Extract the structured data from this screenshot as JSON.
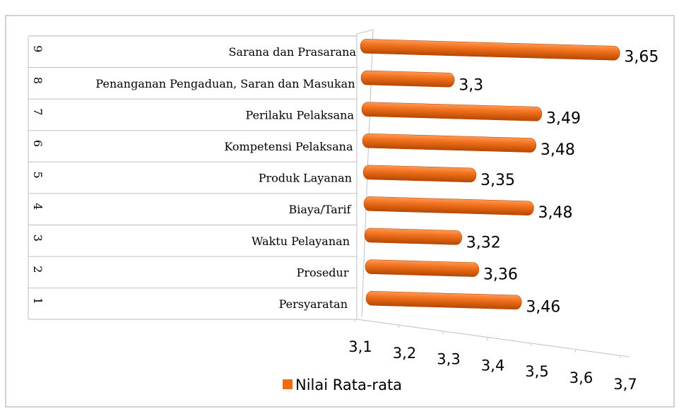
{
  "chart_data": {
    "type": "bar",
    "orientation": "horizontal",
    "categories": [
      "Persyaratan",
      "Prosedur",
      "Waktu Pelayanan",
      "Biaya/Tarif",
      "Produk Layanan",
      "Kompetensi Pelaksana",
      "Perilaku Pelaksana",
      "Penanganan Pengaduan, Saran dan Masukan",
      "Sarana dan Prasarana"
    ],
    "category_numbers": [
      "1",
      "2",
      "3",
      "4",
      "5",
      "6",
      "7",
      "8",
      "9"
    ],
    "series": [
      {
        "name": "Nilai Rata-rata",
        "color": "#f26a10",
        "values": [
          3.46,
          3.36,
          3.32,
          3.48,
          3.35,
          3.48,
          3.49,
          3.3,
          3.65
        ],
        "value_labels": [
          "3,46",
          "3,36",
          "3,32",
          "3,48",
          "3,35",
          "3,48",
          "3,49",
          "3,3",
          "3,65"
        ]
      }
    ],
    "xlim": [
      3.1,
      3.7
    ],
    "xticks": [
      {
        "value": 3.1,
        "label": "3,1"
      },
      {
        "value": 3.2,
        "label": "3,2"
      },
      {
        "value": 3.3,
        "label": "3,3"
      },
      {
        "value": 3.4,
        "label": "3,4"
      },
      {
        "value": 3.5,
        "label": "3,5"
      },
      {
        "value": 3.6,
        "label": "3,6"
      },
      {
        "value": 3.7,
        "label": "3,7"
      }
    ],
    "legend": "bottom"
  }
}
